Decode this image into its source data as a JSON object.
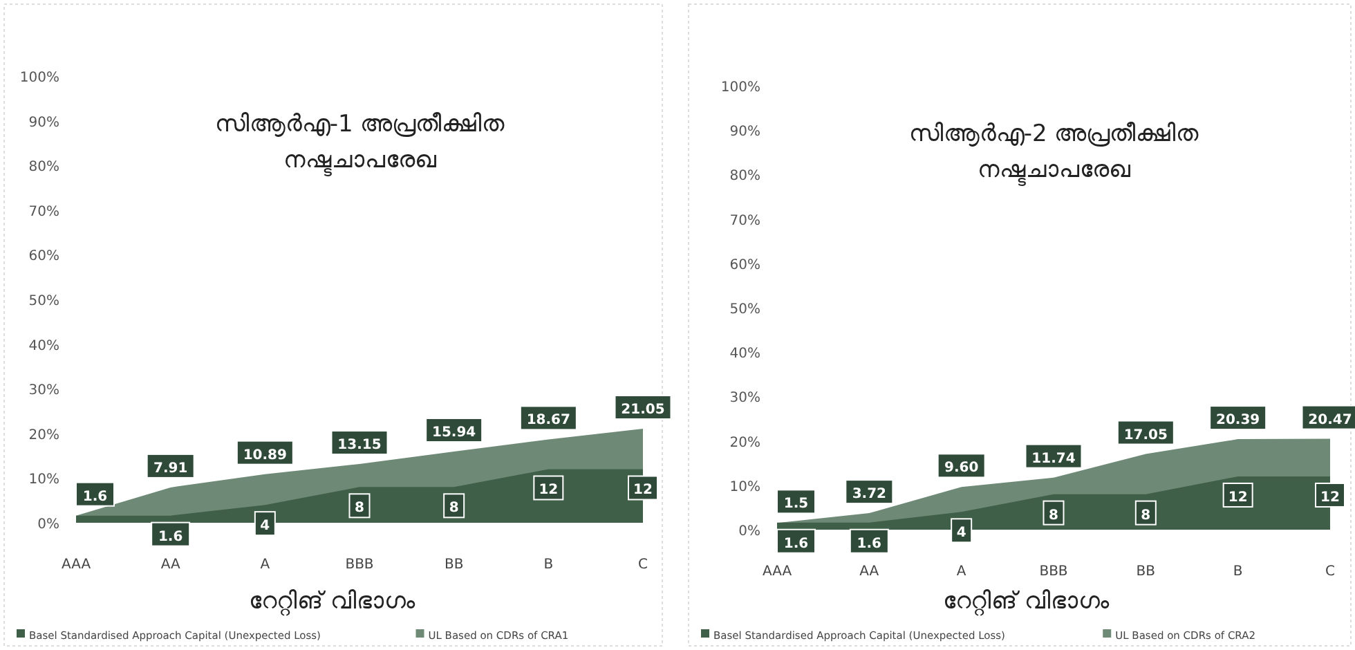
{
  "chart_data": [
    {
      "type": "area",
      "title": "സിആർഎ-1 അപ്രതീക്ഷിത നഷ്ടചാപരേഖ",
      "xlabel": "റേറ്റിങ് വിഭാഗം",
      "categories": [
        "AAA",
        "AA",
        "A",
        "BBB",
        "BB",
        "B",
        "C"
      ],
      "ylim": [
        0,
        100
      ],
      "yticks": [
        {
          "value": 0,
          "label": "0%"
        },
        {
          "value": 10,
          "label": "10%"
        },
        {
          "value": 20,
          "label": "20%"
        },
        {
          "value": 30,
          "label": "30%"
        },
        {
          "value": 40,
          "label": "40%"
        },
        {
          "value": 50,
          "label": "50%"
        },
        {
          "value": 60,
          "label": "60%"
        },
        {
          "value": 70,
          "label": "70%"
        },
        {
          "value": 80,
          "label": "80%"
        },
        {
          "value": 90,
          "label": "90%"
        },
        {
          "value": 100,
          "label": "100%"
        }
      ],
      "legend": "bottom",
      "series": [
        {
          "name": "Basel Standardised Approach Capital (Unexpected Loss)",
          "color": "#3f5f49",
          "values": [
            1.6,
            1.6,
            4,
            8,
            8,
            12,
            12
          ],
          "value_labels": [
            null,
            "1.6",
            "4",
            "8",
            "8",
            "12",
            "12"
          ]
        },
        {
          "name": "UL Based on CDRs of CRA1",
          "color": "#6e8a76",
          "values": [
            1.6,
            7.91,
            10.89,
            13.15,
            15.94,
            18.67,
            21.05
          ],
          "value_labels": [
            "1.6",
            "7.91",
            "10.89",
            "13.15",
            "15.94",
            "18.67",
            "21.05"
          ]
        }
      ]
    },
    {
      "type": "area",
      "title": "സിആർഎ-2 അപ്രതീക്ഷിത നഷ്ടചാപരേഖ",
      "xlabel": "റേറ്റിങ് വിഭാഗം",
      "categories": [
        "AAA",
        "AA",
        "A",
        "BBB",
        "BB",
        "B",
        "C"
      ],
      "ylim": [
        0,
        100
      ],
      "yticks": [
        {
          "value": 0,
          "label": "0%"
        },
        {
          "value": 10,
          "label": "10%"
        },
        {
          "value": 20,
          "label": "20%"
        },
        {
          "value": 30,
          "label": "30%"
        },
        {
          "value": 40,
          "label": "40%"
        },
        {
          "value": 50,
          "label": "50%"
        },
        {
          "value": 60,
          "label": "60%"
        },
        {
          "value": 70,
          "label": "70%"
        },
        {
          "value": 80,
          "label": "80%"
        },
        {
          "value": 90,
          "label": "90%"
        },
        {
          "value": 100,
          "label": "100%"
        }
      ],
      "legend": "bottom",
      "series": [
        {
          "name": "Basel Standardised Approach Capital (Unexpected Loss)",
          "color": "#3f5f49",
          "values": [
            1.6,
            1.6,
            4,
            8,
            8,
            12,
            12
          ],
          "value_labels": [
            "1.6",
            "1.6",
            "4",
            "8",
            "8",
            "12",
            "12"
          ]
        },
        {
          "name": "UL Based on CDRs of CRA2",
          "color": "#6e8a76",
          "values": [
            1.5,
            3.72,
            9.6,
            11.74,
            17.05,
            20.39,
            20.47
          ],
          "value_labels": [
            "1.5",
            "3.72",
            "9.60",
            "11.74",
            "17.05",
            "20.39",
            "20.47"
          ]
        }
      ]
    }
  ]
}
